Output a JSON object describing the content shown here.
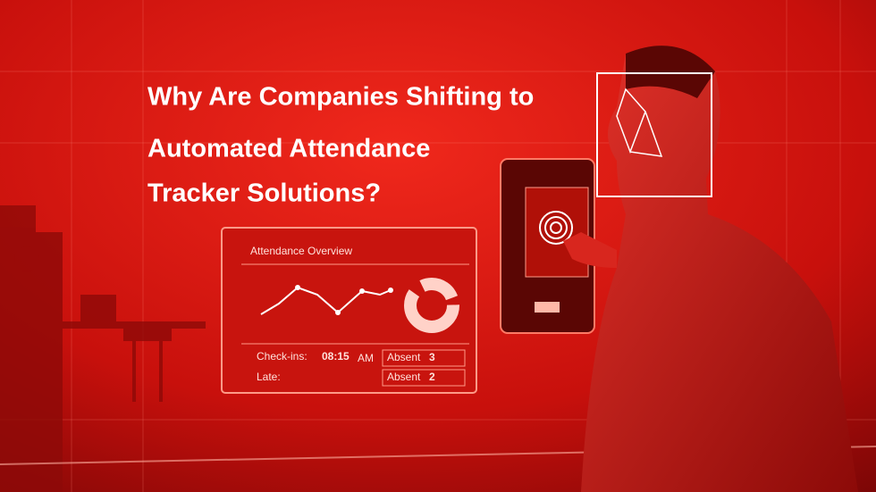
{
  "title": {
    "lines": [
      "Why Are Companies Shifting to",
      "Automated Attendance",
      "Tracker Solutions?"
    ]
  },
  "dashboard": {
    "title": "Attendance Overview",
    "check_ins": {
      "label": "Check-ins:",
      "time": "08:15",
      "period": "AM"
    },
    "late": {
      "label": "Late:"
    },
    "absent": [
      {
        "label": "Absent",
        "value": 3
      },
      {
        "label": "Absent",
        "value": 2
      }
    ]
  }
}
